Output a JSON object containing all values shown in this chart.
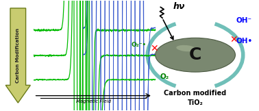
{
  "bg_color": "#ffffff",
  "carbon_mod_label": "Carbon Modification",
  "magnetic_field_label": "Magnetic Field",
  "green_line_color": "#00bb00",
  "blue_line_color": "#3355cc",
  "sphere_fc": "#7a8870",
  "sphere_ec": "#4a5840",
  "teal_color": "#70bfb8",
  "title_line1": "Carbon modified",
  "title_line2": "TiO₂",
  "center_label": "C",
  "hv_label": "hν",
  "oh_minus_label": "OH⁻",
  "oh_radical_label": "OH•",
  "o2_minus_label": "O₂⁻•",
  "o2_label": "O₂",
  "arrow_fc": "#c8cc70",
  "arrow_ec": "#6a7a18"
}
